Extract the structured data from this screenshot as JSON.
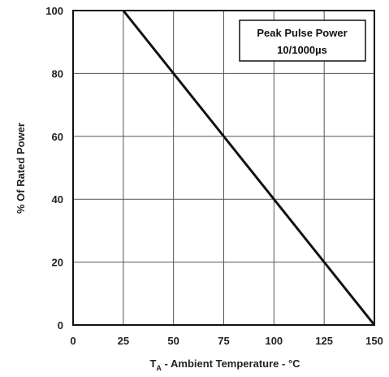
{
  "chart_data": {
    "type": "line",
    "xlabel": "T",
    "xlabel_sub": "A",
    "xlabel_rest": " - Ambient Temperature - °C",
    "ylabel": "% Of Rated Power",
    "x_ticks": [
      "0",
      "25",
      "50",
      "75",
      "100",
      "125",
      "150"
    ],
    "y_ticks": [
      "0",
      "20",
      "40",
      "60",
      "80",
      "100"
    ],
    "xlim": [
      0,
      150
    ],
    "ylim": [
      0,
      100
    ],
    "grid": true,
    "legend_position": "top-right",
    "legend_lines": [
      "Peak Pulse Power",
      "10/1000µs"
    ],
    "series": [
      {
        "x": [
          25,
          150
        ],
        "y": [
          100,
          0
        ],
        "color": "#111111"
      }
    ]
  }
}
